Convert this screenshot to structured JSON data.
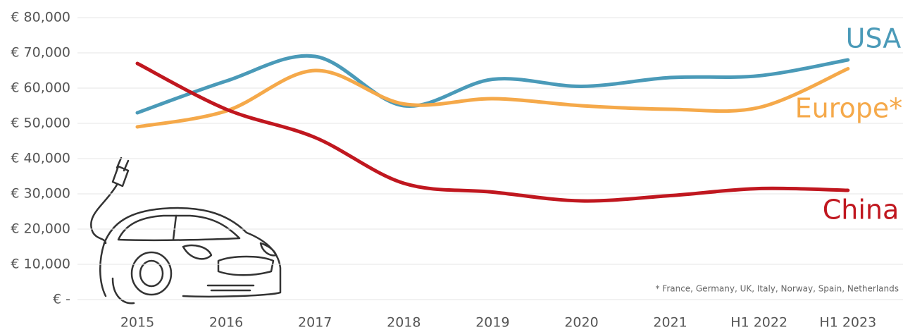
{
  "chart_data": {
    "type": "line",
    "categories": [
      "2015",
      "2016",
      "2017",
      "2018",
      "2019",
      "2020",
      "2021",
      "H1 2022",
      "H1 2023"
    ],
    "series": [
      {
        "name": "USA",
        "color": "#4a9ab8",
        "values": [
          53000,
          62000,
          69000,
          55000,
          62500,
          60500,
          63000,
          63500,
          68000
        ]
      },
      {
        "name": "Europe*",
        "color": "#f5a94a",
        "values": [
          49000,
          53500,
          65000,
          55500,
          57000,
          55000,
          54000,
          54500,
          65500
        ]
      },
      {
        "name": "China",
        "color": "#c0171f",
        "values": [
          67000,
          54000,
          46000,
          33000,
          30500,
          28000,
          29500,
          31500,
          31000
        ]
      }
    ],
    "ylim": [
      0,
      80000
    ],
    "yticks": [
      {
        "value": 0,
        "label": "€ -"
      },
      {
        "value": 10000,
        "label": "€ 10,000"
      },
      {
        "value": 20000,
        "label": "€ 20,000"
      },
      {
        "value": 30000,
        "label": "€ 30,000"
      },
      {
        "value": 40000,
        "label": "€ 40,000"
      },
      {
        "value": 50000,
        "label": "€ 50,000"
      },
      {
        "value": 60000,
        "label": "€ 60,000"
      },
      {
        "value": 70000,
        "label": "€ 70,000"
      },
      {
        "value": 80000,
        "label": "€ 80,000"
      }
    ],
    "grid": true,
    "annotation": "* France, Germany, UK, Italy, Norway, Spain, Netherlands"
  }
}
